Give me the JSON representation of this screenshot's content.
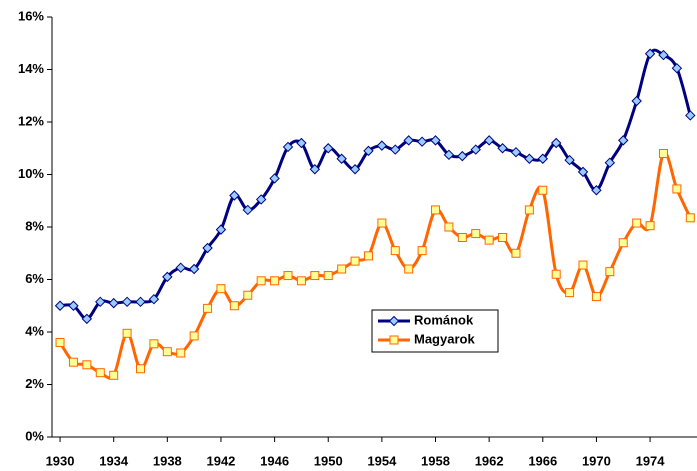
{
  "chart_data": {
    "type": "line",
    "x": [
      1930,
      1931,
      1932,
      1933,
      1934,
      1935,
      1936,
      1937,
      1938,
      1939,
      1940,
      1941,
      1942,
      1943,
      1944,
      1945,
      1946,
      1947,
      1948,
      1949,
      1950,
      1951,
      1952,
      1953,
      1954,
      1955,
      1956,
      1957,
      1958,
      1959,
      1960,
      1961,
      1962,
      1963,
      1964,
      1965,
      1966,
      1967,
      1968,
      1969,
      1970,
      1971,
      1972,
      1973,
      1974,
      1975,
      1976,
      1977
    ],
    "series": [
      {
        "name": "Románok",
        "color": "#000080",
        "marker_color": "#99ccff",
        "values": [
          5.0,
          5.0,
          4.5,
          5.15,
          5.1,
          5.15,
          5.15,
          5.25,
          6.1,
          6.45,
          6.4,
          7.2,
          7.9,
          9.2,
          8.65,
          9.05,
          9.85,
          11.05,
          11.2,
          10.2,
          11.0,
          10.6,
          10.2,
          10.9,
          11.1,
          10.95,
          11.3,
          11.25,
          11.3,
          10.75,
          10.7,
          10.95,
          11.3,
          11.0,
          10.85,
          10.6,
          10.6,
          11.2,
          10.55,
          10.1,
          9.4,
          10.45,
          11.3,
          12.8,
          14.6,
          14.55,
          14.05,
          12.25
        ]
      },
      {
        "name": "Magyarok",
        "color": "#ff6600",
        "marker_color": "#ffff99",
        "values": [
          3.6,
          2.85,
          2.75,
          2.45,
          2.35,
          3.95,
          2.6,
          3.55,
          3.25,
          3.2,
          3.85,
          4.9,
          5.65,
          5.0,
          5.4,
          5.95,
          5.95,
          6.15,
          5.95,
          6.15,
          6.15,
          6.4,
          6.7,
          6.9,
          8.15,
          7.1,
          6.4,
          7.1,
          8.65,
          8.0,
          7.6,
          7.75,
          7.5,
          7.6,
          7.0,
          8.65,
          9.4,
          6.2,
          5.5,
          6.55,
          5.35,
          6.3,
          7.4,
          8.15,
          8.05,
          10.8,
          9.45,
          8.35
        ]
      }
    ],
    "xlim": [
      1929.4,
      1977.5
    ],
    "xticks": [
      1930,
      1934,
      1938,
      1942,
      1946,
      1950,
      1954,
      1958,
      1962,
      1966,
      1970,
      1974
    ],
    "ylim": [
      0,
      16
    ],
    "yticks": [
      {
        "value": 0,
        "label": "0%"
      },
      {
        "value": 2,
        "label": "2%"
      },
      {
        "value": 4,
        "label": "4%"
      },
      {
        "value": 6,
        "label": "6%"
      },
      {
        "value": 8,
        "label": "8%"
      },
      {
        "value": 10,
        "label": "10%"
      },
      {
        "value": 12,
        "label": "12%"
      },
      {
        "value": 14,
        "label": "14%"
      },
      {
        "value": 16,
        "label": "16%"
      }
    ],
    "grid": false,
    "legend": "center"
  }
}
